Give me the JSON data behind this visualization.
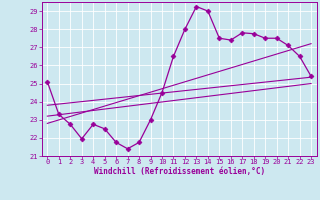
{
  "xlabel": "Windchill (Refroidissement éolien,°C)",
  "bg_color": "#cde8f0",
  "line_color": "#990099",
  "xlim": [
    -0.5,
    23.5
  ],
  "ylim": [
    21,
    29.5
  ],
  "yticks": [
    21,
    22,
    23,
    24,
    25,
    26,
    27,
    28,
    29
  ],
  "xticks": [
    0,
    1,
    2,
    3,
    4,
    5,
    6,
    7,
    8,
    9,
    10,
    11,
    12,
    13,
    14,
    15,
    16,
    17,
    18,
    19,
    20,
    21,
    22,
    23
  ],
  "curve1_x": [
    0,
    1,
    2,
    3,
    4,
    5,
    6,
    7,
    8,
    9,
    10,
    11,
    12,
    13,
    14,
    15,
    16,
    17,
    18,
    19,
    20,
    21,
    22,
    23
  ],
  "curve1_y": [
    25.1,
    23.3,
    22.75,
    21.95,
    22.75,
    22.5,
    21.75,
    21.4,
    21.75,
    23.0,
    24.5,
    26.5,
    28.0,
    29.25,
    29.0,
    27.5,
    27.4,
    27.8,
    27.75,
    27.5,
    27.5,
    27.1,
    26.5,
    25.4
  ],
  "line1_x": [
    0,
    23
  ],
  "line1_y": [
    23.2,
    25.0
  ],
  "line2_x": [
    0,
    23
  ],
  "line2_y": [
    23.8,
    25.35
  ],
  "line3_x": [
    0,
    23
  ],
  "line3_y": [
    22.8,
    27.2
  ]
}
